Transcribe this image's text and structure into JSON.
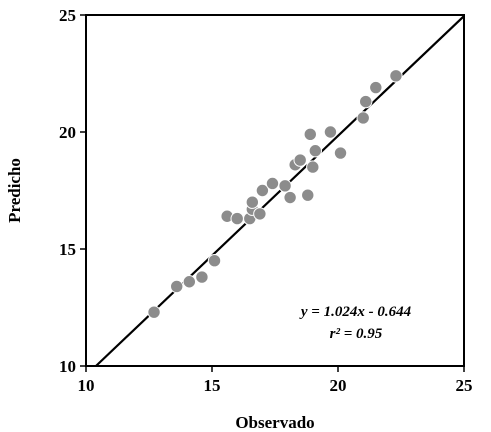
{
  "chart_data": {
    "type": "scatter",
    "xlabel": "Observado",
    "ylabel": "Predicho",
    "xlim": [
      10,
      25
    ],
    "ylim": [
      10,
      25
    ],
    "x_ticks": [
      "10",
      "15",
      "20",
      "25"
    ],
    "y_ticks": [
      "10",
      "15",
      "20",
      "25"
    ],
    "grid": false,
    "legend": "none",
    "marker_color": "#8c8c8c",
    "line_color": "#000000",
    "fit_line": {
      "slope": 1.024,
      "intercept": -0.644,
      "x_range": [
        10,
        25
      ]
    },
    "annotations": {
      "equation": "y = 1.024x - 0.644",
      "r_squared": "r² = 0.95"
    },
    "points": [
      {
        "x": 12.7,
        "y": 12.3
      },
      {
        "x": 13.6,
        "y": 13.4
      },
      {
        "x": 14.1,
        "y": 13.6
      },
      {
        "x": 14.6,
        "y": 13.8
      },
      {
        "x": 15.1,
        "y": 14.5
      },
      {
        "x": 15.6,
        "y": 16.4
      },
      {
        "x": 16.0,
        "y": 16.3
      },
      {
        "x": 16.5,
        "y": 16.3
      },
      {
        "x": 16.6,
        "y": 16.7
      },
      {
        "x": 16.6,
        "y": 17.0
      },
      {
        "x": 16.9,
        "y": 16.5
      },
      {
        "x": 17.0,
        "y": 17.5
      },
      {
        "x": 17.4,
        "y": 17.8
      },
      {
        "x": 17.9,
        "y": 17.7
      },
      {
        "x": 18.1,
        "y": 17.2
      },
      {
        "x": 18.3,
        "y": 18.6
      },
      {
        "x": 18.5,
        "y": 18.8
      },
      {
        "x": 18.8,
        "y": 17.3
      },
      {
        "x": 18.9,
        "y": 19.9
      },
      {
        "x": 19.0,
        "y": 18.5
      },
      {
        "x": 19.1,
        "y": 19.2
      },
      {
        "x": 19.7,
        "y": 20.0
      },
      {
        "x": 20.1,
        "y": 19.1
      },
      {
        "x": 21.0,
        "y": 20.6
      },
      {
        "x": 21.1,
        "y": 21.3
      },
      {
        "x": 21.5,
        "y": 21.9
      },
      {
        "x": 22.3,
        "y": 22.4
      }
    ]
  }
}
